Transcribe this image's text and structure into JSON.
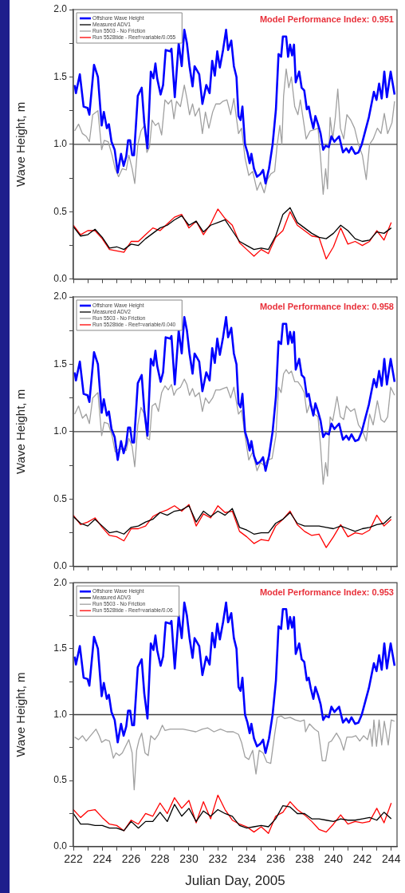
{
  "chart_data": [
    {
      "type": "line",
      "ylabel": "Wave Height, m",
      "xlim": [
        222,
        244.4
      ],
      "ylim": [
        0,
        2
      ],
      "xticks": [
        222,
        {
          "value": 223,
          "label": null
        },
        224,
        {
          "value": 225,
          "label": null
        },
        226,
        {
          "value": 227,
          "label": null
        },
        228,
        {
          "value": 229,
          "label": null
        },
        230,
        {
          "value": 231,
          "label": null
        },
        232,
        {
          "value": 233,
          "label": null
        },
        234,
        {
          "value": 235,
          "label": null
        },
        236,
        {
          "value": 237,
          "label": null
        },
        238,
        {
          "value": 239,
          "label": null
        },
        240,
        {
          "value": 241,
          "label": null
        },
        242,
        {
          "value": 243,
          "label": null
        },
        244
      ],
      "yticks": [
        {
          "value": 0,
          "label": "0.0"
        },
        {
          "value": 0.25,
          "label": null
        },
        {
          "value": 0.5,
          "label": "0.5"
        },
        {
          "value": 0.75,
          "label": null
        },
        {
          "value": 1,
          "label": "1.0"
        },
        {
          "value": 1.25,
          "label": null
        },
        {
          "value": 1.5,
          "label": "1.5"
        },
        {
          "value": 1.75,
          "label": null
        },
        {
          "value": 2,
          "label": "2.0"
        }
      ],
      "tick_labels": "y",
      "legend": "top left",
      "annotations": [
        "Model Performance Index: 0.951"
      ],
      "ref_lines": [
        {
          "axis": "y",
          "value": 1,
          "color": "#404040"
        }
      ],
      "x": [
        222,
        222.5,
        223,
        223.5,
        224,
        224.5,
        225,
        225.5,
        226,
        226.5,
        227,
        227.5,
        228,
        228.5,
        229,
        229.5,
        230,
        230.5,
        231,
        231.5,
        232,
        232.5,
        233,
        233.5,
        234,
        234.5,
        235,
        235.5,
        236,
        236.5,
        237,
        237.5,
        238,
        238.5,
        239,
        239.5,
        240,
        240.5,
        241,
        241.5,
        242,
        242.5,
        243,
        243.5,
        244
      ],
      "series": [
        {
          "name": "Offshore Wave Height",
          "color": "#0000ff",
          "x": [
            222.09,
            222.18,
            222.45,
            222.71,
            222.98,
            223.11,
            223.43,
            223.7,
            223.96,
            224.11,
            224.32,
            224.46,
            224.64,
            224.86,
            225.07,
            225.3,
            225.48,
            225.66,
            225.79,
            225.93,
            226.07,
            226.2,
            226.46,
            226.73,
            226.91,
            227.13,
            227.36,
            227.54,
            227.68,
            227.8,
            228.04,
            228.21,
            228.39,
            228.7,
            228.79,
            229.02,
            229.29,
            229.5,
            229.68,
            229.86,
            230.04,
            230.25,
            230.39,
            230.71,
            230.93,
            231.2,
            231.43,
            231.61,
            231.79,
            231.96,
            232.14,
            232.36,
            232.57,
            232.71,
            232.93,
            233.11,
            233.29,
            233.43,
            233.57,
            233.7,
            233.88,
            234.05,
            234.2,
            234.32,
            234.5,
            234.71,
            234.95,
            235.13,
            235.3,
            235.54,
            235.79,
            236.02,
            236.2,
            236.38,
            236.5,
            236.73,
            236.86,
            237.0,
            237.14,
            237.27,
            237.39,
            237.63,
            237.8,
            237.98,
            238.16,
            238.29,
            238.43,
            238.61,
            238.75,
            238.93,
            239.11,
            239.29,
            239.46,
            239.68,
            239.86,
            240.07,
            240.39,
            240.66,
            240.89,
            241.07,
            241.25,
            241.5,
            241.73,
            241.96,
            242.18,
            242.45,
            242.8,
            242.98,
            243.16,
            243.34,
            243.52,
            243.7,
            243.96,
            244.23
          ],
          "values": [
            1.44,
            1.38,
            1.52,
            1.28,
            1.27,
            1.22,
            1.59,
            1.5,
            1.14,
            1.24,
            1.12,
            1.15,
            1.02,
            0.96,
            0.79,
            0.93,
            0.84,
            0.91,
            1.03,
            1.03,
            0.92,
            0.92,
            1.36,
            1.42,
            1.16,
            0.97,
            1.54,
            1.49,
            1.6,
            1.49,
            1.37,
            1.44,
            1.7,
            1.69,
            1.71,
            1.35,
            1.75,
            1.58,
            1.85,
            1.75,
            1.58,
            1.43,
            1.58,
            1.52,
            1.3,
            1.44,
            1.38,
            1.62,
            1.51,
            1.69,
            1.57,
            1.7,
            1.85,
            1.7,
            1.77,
            1.58,
            1.5,
            1.21,
            1.18,
            1.28,
            1.0,
            0.94,
            0.86,
            0.93,
            0.82,
            0.76,
            0.78,
            0.81,
            0.71,
            0.82,
            1.0,
            1.26,
            1.67,
            1.65,
            1.8,
            1.8,
            1.65,
            1.74,
            1.66,
            1.74,
            1.46,
            1.54,
            1.42,
            1.4,
            1.26,
            1.28,
            1.2,
            1.12,
            1.21,
            1.15,
            1.08,
            0.96,
            0.99,
            0.98,
            1.06,
            1.02,
            1.06,
            0.94,
            0.97,
            0.94,
            0.98,
            0.93,
            0.94,
            1.0,
            1.09,
            1.2,
            1.39,
            1.33,
            1.45,
            1.34,
            1.54,
            1.35,
            1.54,
            1.37
          ]
        },
        {
          "name": "Measured ADV1",
          "color": "#000000",
          "values": [
            0.39,
            0.32,
            0.33,
            0.37,
            0.31,
            0.23,
            0.24,
            0.22,
            0.26,
            0.25,
            0.3,
            0.34,
            0.38,
            0.4,
            0.44,
            0.47,
            0.4,
            0.43,
            0.35,
            0.4,
            0.42,
            0.44,
            0.36,
            0.28,
            0.25,
            0.22,
            0.23,
            0.22,
            0.32,
            0.48,
            0.53,
            0.42,
            0.38,
            0.34,
            0.31,
            0.3,
            0.34,
            0.4,
            0.36,
            0.3,
            0.28,
            0.29,
            0.35,
            0.34,
            0.38
          ]
        },
        {
          "name": "Run 5503 - No Friction",
          "color": "#a0a0a0",
          "x": [
            222.09,
            222.36,
            222.63,
            222.89,
            223.11,
            223.34,
            223.7,
            223.96,
            224.14,
            224.41,
            224.68,
            224.89,
            225.13,
            225.39,
            225.66,
            225.84,
            226.07,
            226.25,
            226.46,
            226.68,
            226.91,
            227.09,
            227.27,
            227.45,
            227.68,
            227.89,
            228.11,
            228.34,
            228.57,
            228.79,
            228.96,
            229.14,
            229.41,
            229.68,
            229.86,
            230.04,
            230.25,
            230.43,
            230.71,
            230.93,
            231.14,
            231.38,
            231.64,
            231.86,
            232.14,
            232.36,
            232.63,
            232.89,
            233.11,
            233.43,
            233.64,
            233.88,
            234.14,
            234.41,
            234.71,
            234.95,
            235.21,
            235.43,
            235.66,
            235.93,
            236.11,
            236.29,
            236.43,
            236.55,
            236.73,
            236.91,
            237.09,
            237.32,
            237.54,
            237.71,
            237.89,
            238.11,
            238.39,
            238.7,
            238.93,
            239.11,
            239.29,
            239.46,
            239.59,
            239.77,
            239.95,
            240.13,
            240.3,
            240.48,
            240.71,
            240.93,
            241.2,
            241.46,
            241.73,
            242.0,
            242.27,
            242.5,
            242.75,
            243.04,
            243.29,
            243.52,
            243.75,
            244.05,
            244.23
          ],
          "values": [
            1.1,
            1.15,
            1.08,
            1.06,
            1.02,
            1.22,
            1.25,
            0.96,
            1.03,
            1.02,
            0.92,
            0.82,
            0.76,
            0.82,
            0.81,
            0.92,
            0.82,
            0.71,
            1.0,
            1.1,
            1.14,
            0.94,
            0.98,
            1.18,
            1.14,
            1.16,
            1.07,
            1.33,
            1.3,
            1.33,
            1.19,
            1.32,
            1.28,
            1.44,
            1.34,
            1.22,
            1.3,
            1.21,
            1.27,
            1.08,
            1.24,
            1.12,
            1.24,
            1.3,
            1.3,
            1.32,
            1.33,
            1.22,
            1.34,
            1.08,
            1.12,
            0.9,
            0.77,
            0.8,
            0.66,
            0.72,
            0.64,
            0.74,
            0.78,
            0.8,
            1.0,
            1.14,
            1.0,
            1.36,
            1.56,
            1.42,
            1.5,
            1.28,
            1.22,
            1.33,
            1.2,
            1.04,
            1.1,
            1.11,
            1.12,
            0.9,
            0.63,
            0.82,
            0.67,
            1.2,
            1.04,
            1.2,
            1.41,
            1.12,
            1.04,
            1.22,
            1.18,
            1.12,
            1.0,
            0.92,
            0.74,
            1.0,
            1.04,
            1.12,
            1.08,
            1.23,
            1.08,
            1.16,
            1.32
          ]
        },
        {
          "name": "Run 5528tide - Reef=variable/0.055",
          "color": "#ff0000",
          "values": [
            0.4,
            0.33,
            0.36,
            0.36,
            0.3,
            0.22,
            0.21,
            0.2,
            0.28,
            0.28,
            0.33,
            0.38,
            0.36,
            0.41,
            0.46,
            0.48,
            0.38,
            0.43,
            0.33,
            0.41,
            0.52,
            0.45,
            0.4,
            0.27,
            0.22,
            0.17,
            0.22,
            0.19,
            0.31,
            0.36,
            0.5,
            0.4,
            0.36,
            0.32,
            0.31,
            0.15,
            0.24,
            0.38,
            0.26,
            0.28,
            0.25,
            0.28,
            0.36,
            0.29,
            0.42
          ]
        }
      ]
    },
    {
      "type": "line",
      "ylabel": "Wave Height, m",
      "xlim": [
        222,
        244.4
      ],
      "ylim": [
        0,
        2
      ],
      "xticks": [
        222,
        {
          "value": 223,
          "label": null
        },
        224,
        {
          "value": 225,
          "label": null
        },
        226,
        {
          "value": 227,
          "label": null
        },
        228,
        {
          "value": 229,
          "label": null
        },
        230,
        {
          "value": 231,
          "label": null
        },
        232,
        {
          "value": 233,
          "label": null
        },
        234,
        {
          "value": 235,
          "label": null
        },
        236,
        {
          "value": 237,
          "label": null
        },
        238,
        {
          "value": 239,
          "label": null
        },
        240,
        {
          "value": 241,
          "label": null
        },
        242,
        {
          "value": 243,
          "label": null
        },
        244
      ],
      "yticks": [
        {
          "value": 0,
          "label": "0.0"
        },
        {
          "value": 0.25,
          "label": null
        },
        {
          "value": 0.5,
          "label": "0.5"
        },
        {
          "value": 0.75,
          "label": null
        },
        {
          "value": 1,
          "label": "1.0"
        },
        {
          "value": 1.25,
          "label": null
        },
        {
          "value": 1.5,
          "label": "1.5"
        },
        {
          "value": 1.75,
          "label": null
        },
        {
          "value": 2,
          "label": "2.0"
        }
      ],
      "tick_labels": "y",
      "legend": "top left",
      "annotations": [
        "Model Performance Index: 0.958"
      ],
      "ref_lines": [
        {
          "axis": "y",
          "value": 1,
          "color": "#404040"
        }
      ],
      "x": [
        222,
        222.5,
        223,
        223.5,
        224,
        224.5,
        225,
        225.5,
        226,
        226.5,
        227,
        227.5,
        228,
        228.5,
        229,
        229.5,
        230,
        230.5,
        231,
        231.5,
        232,
        232.5,
        233,
        233.5,
        234,
        234.5,
        235,
        235.5,
        236,
        236.5,
        237,
        237.5,
        238,
        238.5,
        239,
        239.5,
        240,
        240.5,
        241,
        241.5,
        242,
        242.5,
        243,
        243.5,
        244
      ],
      "series": [
        {
          "name": "Offshore Wave Height",
          "color": "#0000ff",
          "x": [
            222.09,
            222.18,
            222.45,
            222.71,
            222.98,
            223.11,
            223.43,
            223.7,
            223.96,
            224.11,
            224.32,
            224.46,
            224.64,
            224.86,
            225.07,
            225.3,
            225.48,
            225.66,
            225.79,
            225.93,
            226.07,
            226.2,
            226.46,
            226.73,
            226.91,
            227.13,
            227.36,
            227.54,
            227.68,
            227.8,
            228.04,
            228.21,
            228.39,
            228.7,
            228.79,
            229.02,
            229.29,
            229.5,
            229.68,
            229.86,
            230.04,
            230.25,
            230.39,
            230.71,
            230.93,
            231.2,
            231.43,
            231.61,
            231.79,
            231.96,
            232.14,
            232.36,
            232.57,
            232.71,
            232.93,
            233.11,
            233.29,
            233.43,
            233.57,
            233.7,
            233.88,
            234.05,
            234.2,
            234.32,
            234.5,
            234.71,
            234.95,
            235.13,
            235.3,
            235.54,
            235.79,
            236.02,
            236.2,
            236.38,
            236.5,
            236.73,
            236.86,
            237.0,
            237.14,
            237.27,
            237.39,
            237.63,
            237.8,
            237.98,
            238.16,
            238.29,
            238.43,
            238.61,
            238.75,
            238.93,
            239.11,
            239.29,
            239.46,
            239.68,
            239.86,
            240.07,
            240.39,
            240.66,
            240.89,
            241.07,
            241.25,
            241.5,
            241.73,
            241.96,
            242.18,
            242.45,
            242.8,
            242.98,
            243.16,
            243.34,
            243.52,
            243.7,
            243.96,
            244.23
          ],
          "values": [
            1.44,
            1.38,
            1.52,
            1.28,
            1.27,
            1.22,
            1.59,
            1.5,
            1.14,
            1.24,
            1.12,
            1.15,
            1.02,
            0.96,
            0.79,
            0.93,
            0.84,
            0.91,
            1.03,
            1.03,
            0.92,
            0.92,
            1.36,
            1.42,
            1.16,
            0.97,
            1.54,
            1.49,
            1.6,
            1.49,
            1.37,
            1.44,
            1.7,
            1.69,
            1.71,
            1.35,
            1.75,
            1.58,
            1.85,
            1.75,
            1.58,
            1.43,
            1.58,
            1.52,
            1.3,
            1.44,
            1.38,
            1.62,
            1.51,
            1.69,
            1.57,
            1.7,
            1.85,
            1.7,
            1.77,
            1.58,
            1.5,
            1.21,
            1.18,
            1.28,
            1.0,
            0.94,
            0.86,
            0.93,
            0.82,
            0.76,
            0.78,
            0.81,
            0.71,
            0.82,
            1.0,
            1.26,
            1.67,
            1.65,
            1.8,
            1.8,
            1.65,
            1.74,
            1.66,
            1.74,
            1.46,
            1.54,
            1.42,
            1.4,
            1.26,
            1.28,
            1.2,
            1.12,
            1.21,
            1.15,
            1.08,
            0.96,
            0.99,
            0.98,
            1.06,
            1.02,
            1.06,
            0.94,
            0.97,
            0.94,
            0.98,
            0.93,
            0.94,
            1.0,
            1.09,
            1.2,
            1.39,
            1.33,
            1.45,
            1.34,
            1.54,
            1.35,
            1.54,
            1.37
          ]
        },
        {
          "name": "Measured ADV2",
          "color": "#000000",
          "values": [
            0.37,
            0.32,
            0.3,
            0.35,
            0.3,
            0.25,
            0.26,
            0.24,
            0.29,
            0.3,
            0.33,
            0.35,
            0.4,
            0.38,
            0.41,
            0.42,
            0.45,
            0.33,
            0.41,
            0.37,
            0.41,
            0.38,
            0.43,
            0.29,
            0.27,
            0.24,
            0.25,
            0.25,
            0.32,
            0.35,
            0.4,
            0.32,
            0.3,
            0.3,
            0.3,
            0.29,
            0.28,
            0.3,
            0.28,
            0.26,
            0.28,
            0.29,
            0.31,
            0.32,
            0.37
          ]
        },
        {
          "name": "Run 5503 - No Friction",
          "color": "#a0a0a0",
          "x": [
            222.09,
            222.36,
            222.63,
            222.89,
            223.11,
            223.34,
            223.7,
            223.96,
            224.14,
            224.41,
            224.68,
            224.89,
            225.13,
            225.39,
            225.66,
            225.84,
            226.07,
            226.25,
            226.46,
            226.68,
            226.91,
            227.09,
            227.27,
            227.45,
            227.68,
            227.89,
            228.11,
            228.34,
            228.57,
            228.79,
            228.96,
            229.14,
            229.41,
            229.68,
            229.86,
            230.04,
            230.25,
            230.43,
            230.71,
            230.93,
            231.14,
            231.38,
            231.64,
            231.86,
            232.14,
            232.36,
            232.63,
            232.89,
            233.11,
            233.43,
            233.64,
            233.88,
            234.14,
            234.41,
            234.71,
            234.95,
            235.21,
            235.43,
            235.75,
            236.02,
            236.2,
            236.38,
            236.55,
            236.73,
            236.91,
            237.09,
            237.32,
            237.54,
            237.8,
            237.98,
            238.16,
            238.39,
            238.7,
            238.93,
            239.11,
            239.29,
            239.46,
            239.59,
            239.77,
            239.95,
            240.25,
            240.48,
            240.71,
            240.89,
            241.2,
            241.46,
            241.73,
            242.0,
            242.27,
            242.5,
            242.75,
            243.04,
            243.29,
            243.52,
            243.75,
            243.96,
            244.23
          ],
          "values": [
            1.13,
            1.19,
            1.1,
            1.13,
            1.06,
            1.25,
            1.29,
            0.97,
            1.07,
            1.06,
            0.97,
            0.85,
            0.87,
            0.87,
            0.86,
            0.95,
            0.89,
            0.74,
            1.05,
            1.18,
            1.13,
            0.95,
            0.94,
            1.19,
            1.21,
            1.15,
            1.29,
            1.34,
            1.31,
            1.35,
            1.27,
            1.31,
            1.33,
            1.39,
            1.35,
            1.27,
            1.32,
            1.26,
            1.29,
            1.15,
            1.25,
            1.21,
            1.25,
            1.31,
            1.31,
            1.32,
            1.33,
            1.25,
            1.33,
            1.13,
            1.16,
            0.97,
            0.79,
            0.85,
            0.71,
            0.77,
            0.75,
            0.79,
            0.8,
            0.97,
            1.33,
            1.29,
            1.43,
            1.46,
            1.43,
            1.45,
            1.37,
            1.37,
            1.33,
            1.29,
            1.14,
            1.21,
            1.13,
            1.11,
            0.89,
            0.61,
            0.77,
            0.67,
            1.11,
            1.08,
            1.26,
            1.11,
            1.09,
            1.19,
            1.15,
            1.17,
            1.05,
            1.01,
            0.93,
            1.13,
            1.05,
            1.23,
            1.09,
            1.07,
            1.11,
            1.33,
            1.27
          ]
        },
        {
          "name": "Run 5528tide - Reef=variable/0.040",
          "color": "#ff0000",
          "values": [
            0.38,
            0.31,
            0.33,
            0.36,
            0.29,
            0.23,
            0.22,
            0.19,
            0.28,
            0.28,
            0.3,
            0.37,
            0.4,
            0.42,
            0.45,
            0.41,
            0.46,
            0.3,
            0.39,
            0.36,
            0.45,
            0.4,
            0.41,
            0.26,
            0.22,
            0.17,
            0.2,
            0.19,
            0.3,
            0.35,
            0.41,
            0.31,
            0.26,
            0.23,
            0.24,
            0.14,
            0.22,
            0.31,
            0.22,
            0.25,
            0.24,
            0.27,
            0.38,
            0.3,
            0.35
          ]
        }
      ]
    },
    {
      "type": "line",
      "xlabel": "Julian Day, 2005",
      "ylabel": "Wave Height, m",
      "xlim": [
        222,
        244.4
      ],
      "ylim": [
        0,
        2
      ],
      "xticks": [
        222,
        {
          "value": 223,
          "label": null
        },
        224,
        {
          "value": 225,
          "label": null
        },
        226,
        {
          "value": 227,
          "label": null
        },
        228,
        {
          "value": 229,
          "label": null
        },
        230,
        {
          "value": 231,
          "label": null
        },
        232,
        {
          "value": 233,
          "label": null
        },
        234,
        {
          "value": 235,
          "label": null
        },
        236,
        {
          "value": 237,
          "label": null
        },
        238,
        {
          "value": 239,
          "label": null
        },
        240,
        {
          "value": 241,
          "label": null
        },
        242,
        {
          "value": 243,
          "label": null
        },
        244
      ],
      "yticks": [
        {
          "value": 0,
          "label": "0.0"
        },
        {
          "value": 0.25,
          "label": null
        },
        {
          "value": 0.5,
          "label": "0.5"
        },
        {
          "value": 0.75,
          "label": null
        },
        {
          "value": 1,
          "label": "1.0"
        },
        {
          "value": 1.25,
          "label": null
        },
        {
          "value": 1.5,
          "label": "1.5"
        },
        {
          "value": 1.75,
          "label": null
        },
        {
          "value": 2,
          "label": "2.0"
        }
      ],
      "legend": "top left",
      "annotations": [
        "Model Performance Index: 0.953"
      ],
      "ref_lines": [
        {
          "axis": "y",
          "value": 1,
          "color": "#404040"
        }
      ],
      "x": [
        222,
        222.5,
        223,
        223.5,
        224,
        224.5,
        225,
        225.5,
        226,
        226.5,
        227,
        227.5,
        228,
        228.5,
        229,
        229.5,
        230,
        230.5,
        231,
        231.5,
        232,
        232.5,
        233,
        233.5,
        234,
        234.5,
        235,
        235.5,
        236,
        236.5,
        237,
        237.5,
        238,
        238.5,
        239,
        239.5,
        240,
        240.5,
        241,
        241.5,
        242,
        242.5,
        243,
        243.5,
        244
      ],
      "series": [
        {
          "name": "Offshore Wave Height",
          "color": "#0000ff",
          "x": [
            222.09,
            222.18,
            222.45,
            222.71,
            222.98,
            223.11,
            223.43,
            223.7,
            223.96,
            224.11,
            224.32,
            224.46,
            224.64,
            224.86,
            225.07,
            225.3,
            225.48,
            225.66,
            225.79,
            225.93,
            226.07,
            226.2,
            226.46,
            226.73,
            226.91,
            227.13,
            227.36,
            227.54,
            227.68,
            227.8,
            228.04,
            228.21,
            228.39,
            228.7,
            228.79,
            229.02,
            229.29,
            229.5,
            229.68,
            229.86,
            230.04,
            230.25,
            230.39,
            230.71,
            230.93,
            231.2,
            231.43,
            231.61,
            231.79,
            231.96,
            232.14,
            232.36,
            232.57,
            232.71,
            232.93,
            233.11,
            233.29,
            233.43,
            233.57,
            233.7,
            233.88,
            234.05,
            234.2,
            234.32,
            234.5,
            234.71,
            234.95,
            235.13,
            235.3,
            235.54,
            235.79,
            236.02,
            236.2,
            236.38,
            236.5,
            236.73,
            236.86,
            237.0,
            237.14,
            237.27,
            237.39,
            237.63,
            237.8,
            237.98,
            238.16,
            238.29,
            238.43,
            238.61,
            238.75,
            238.93,
            239.11,
            239.29,
            239.46,
            239.68,
            239.86,
            240.07,
            240.39,
            240.66,
            240.89,
            241.07,
            241.25,
            241.5,
            241.73,
            241.96,
            242.18,
            242.45,
            242.8,
            242.98,
            243.16,
            243.34,
            243.52,
            243.7,
            243.96,
            244.23
          ],
          "values": [
            1.44,
            1.38,
            1.52,
            1.28,
            1.27,
            1.22,
            1.59,
            1.5,
            1.14,
            1.24,
            1.12,
            1.15,
            1.02,
            0.96,
            0.79,
            0.93,
            0.84,
            0.91,
            1.03,
            1.03,
            0.92,
            0.92,
            1.36,
            1.42,
            1.16,
            0.97,
            1.54,
            1.49,
            1.6,
            1.49,
            1.37,
            1.44,
            1.7,
            1.69,
            1.71,
            1.35,
            1.75,
            1.58,
            1.85,
            1.75,
            1.58,
            1.43,
            1.58,
            1.52,
            1.3,
            1.44,
            1.38,
            1.62,
            1.51,
            1.69,
            1.57,
            1.7,
            1.85,
            1.7,
            1.77,
            1.58,
            1.5,
            1.21,
            1.18,
            1.28,
            1.0,
            0.94,
            0.86,
            0.93,
            0.82,
            0.76,
            0.78,
            0.81,
            0.71,
            0.82,
            1.0,
            1.26,
            1.67,
            1.65,
            1.8,
            1.8,
            1.65,
            1.74,
            1.66,
            1.74,
            1.46,
            1.54,
            1.42,
            1.4,
            1.26,
            1.28,
            1.2,
            1.12,
            1.21,
            1.15,
            1.08,
            0.96,
            0.99,
            0.98,
            1.06,
            1.02,
            1.06,
            0.94,
            0.97,
            0.94,
            0.98,
            0.93,
            0.94,
            1.0,
            1.09,
            1.2,
            1.39,
            1.33,
            1.45,
            1.34,
            1.54,
            1.35,
            1.54,
            1.37
          ]
        },
        {
          "name": "Measured ADV3",
          "color": "#000000",
          "values": [
            0.25,
            0.17,
            0.17,
            0.16,
            0.16,
            0.14,
            0.14,
            0.12,
            0.19,
            0.14,
            0.19,
            0.19,
            0.26,
            0.19,
            0.32,
            0.23,
            0.29,
            0.19,
            0.27,
            0.23,
            0.28,
            0.25,
            0.23,
            0.16,
            0.14,
            0.15,
            0.16,
            0.15,
            0.21,
            0.31,
            0.3,
            0.25,
            0.25,
            0.21,
            0.21,
            0.2,
            0.19,
            0.21,
            0.2,
            0.2,
            0.21,
            0.22,
            0.2,
            0.26,
            0.21
          ]
        },
        {
          "name": "Run 5503 - No Friction",
          "color": "#a0a0a0",
          "x": [
            222.09,
            222.36,
            222.63,
            222.89,
            223.11,
            223.34,
            223.57,
            223.79,
            223.96,
            224.23,
            224.5,
            224.77,
            224.95,
            225.18,
            225.39,
            225.66,
            225.84,
            226.07,
            226.21,
            226.38,
            226.55,
            226.73,
            226.96,
            227.18,
            227.36,
            227.63,
            227.89,
            228.16,
            228.34,
            228.7,
            229.14,
            229.59,
            230.04,
            230.48,
            230.93,
            231.29,
            231.73,
            232.18,
            232.63,
            233.07,
            233.43,
            233.64,
            233.88,
            234.14,
            234.41,
            234.64,
            234.86,
            235.13,
            235.39,
            235.66,
            235.93,
            236.11,
            236.38,
            236.64,
            237.0,
            237.36,
            237.71,
            237.98,
            238.07,
            238.34,
            238.7,
            238.96,
            239.23,
            239.46,
            239.68,
            239.86,
            240.21,
            240.48,
            240.71,
            240.93,
            241.29,
            241.55,
            241.82,
            242.09,
            242.36,
            242.54,
            242.68,
            242.8,
            242.98,
            243.16,
            243.34,
            243.52,
            243.79,
            244.0,
            244.23
          ],
          "values": [
            0.83,
            0.81,
            0.84,
            0.8,
            0.83,
            0.86,
            0.89,
            0.84,
            0.79,
            0.81,
            0.8,
            0.67,
            0.71,
            0.69,
            0.71,
            0.77,
            0.81,
            0.71,
            0.43,
            0.73,
            0.81,
            0.86,
            0.71,
            0.69,
            0.84,
            0.81,
            0.85,
            0.92,
            0.88,
            0.89,
            0.89,
            0.89,
            0.88,
            0.87,
            0.89,
            0.9,
            0.87,
            0.89,
            0.87,
            0.87,
            0.85,
            0.79,
            0.68,
            0.66,
            0.73,
            0.55,
            0.73,
            0.71,
            0.64,
            0.63,
            0.85,
            0.98,
            0.99,
            0.97,
            0.98,
            0.96,
            0.95,
            0.96,
            0.87,
            0.93,
            0.89,
            0.87,
            0.65,
            0.65,
            0.79,
            0.8,
            0.86,
            0.81,
            0.73,
            0.83,
            0.83,
            0.84,
            0.8,
            0.84,
            0.81,
            0.89,
            0.76,
            0.96,
            0.76,
            0.96,
            0.77,
            0.95,
            0.77,
            0.96,
            0.95
          ]
        },
        {
          "name": "Run 5528tide - Reef=variable/0.06",
          "color": "#ff0000",
          "values": [
            0.28,
            0.22,
            0.27,
            0.28,
            0.22,
            0.17,
            0.16,
            0.12,
            0.2,
            0.17,
            0.25,
            0.23,
            0.33,
            0.25,
            0.37,
            0.29,
            0.35,
            0.18,
            0.34,
            0.21,
            0.39,
            0.28,
            0.2,
            0.17,
            0.15,
            0.11,
            0.15,
            0.1,
            0.23,
            0.26,
            0.34,
            0.28,
            0.24,
            0.19,
            0.13,
            0.11,
            0.17,
            0.24,
            0.17,
            0.19,
            0.18,
            0.19,
            0.29,
            0.18,
            0.33
          ]
        }
      ]
    }
  ]
}
